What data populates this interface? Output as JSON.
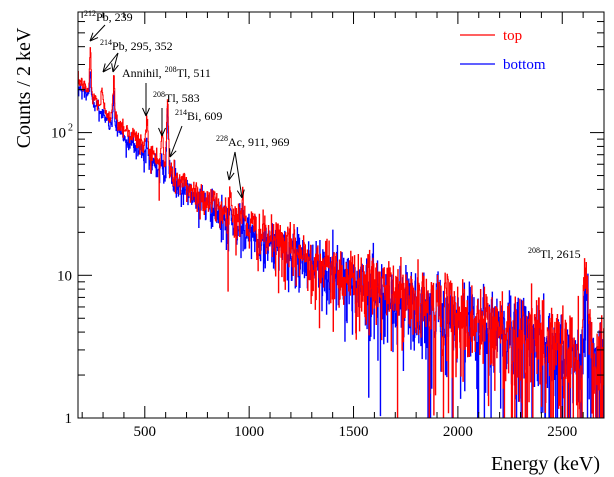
{
  "chart_data": {
    "type": "line",
    "xlabel": "Energy (keV)",
    "ylabel": "Counts / 2 keV",
    "xlim": [
      180,
      2700
    ],
    "ylim": [
      1,
      700
    ],
    "yscale": "log",
    "x_ticks": [
      500,
      1000,
      1500,
      2000,
      2500
    ],
    "x_tick_labels": [
      "500",
      "1000",
      "1500",
      "2000",
      "2500"
    ],
    "y_tick_labels": [
      {
        "value": 1,
        "base": "1",
        "exp": ""
      },
      {
        "value": 10,
        "base": "10",
        "exp": ""
      },
      {
        "value": 100,
        "base": "10",
        "exp": "2"
      }
    ],
    "legend": {
      "placement": "top-right"
    },
    "bin_width": 2,
    "series": [
      {
        "name": "top",
        "color": "#ff0000",
        "continuum": [
          [
            190,
            230
          ],
          [
            250,
            180
          ],
          [
            300,
            150
          ],
          [
            400,
            110
          ],
          [
            500,
            80
          ],
          [
            600,
            56
          ],
          [
            700,
            42
          ],
          [
            800,
            34
          ],
          [
            900,
            27
          ],
          [
            1000,
            22
          ],
          [
            1100,
            18
          ],
          [
            1200,
            15
          ],
          [
            1300,
            13
          ],
          [
            1400,
            11
          ],
          [
            1500,
            9.5
          ],
          [
            1600,
            8.5
          ],
          [
            1700,
            7.5
          ],
          [
            1800,
            6.5
          ],
          [
            1900,
            6
          ],
          [
            2000,
            5.2
          ],
          [
            2100,
            4.6
          ],
          [
            2200,
            4.2
          ],
          [
            2300,
            3.8
          ],
          [
            2400,
            3.4
          ],
          [
            2500,
            3
          ],
          [
            2600,
            2.6
          ],
          [
            2700,
            2.2
          ]
        ],
        "peaks": [
          [
            239,
            380
          ],
          [
            295,
            200
          ],
          [
            352,
            240
          ],
          [
            511,
            130
          ],
          [
            583,
            105
          ],
          [
            609,
            160
          ],
          [
            911,
            38
          ],
          [
            969,
            33
          ],
          [
            2615,
            12
          ]
        ]
      },
      {
        "name": "bottom",
        "color": "#0000ff",
        "continuum": [
          [
            190,
            210
          ],
          [
            250,
            165
          ],
          [
            300,
            135
          ],
          [
            400,
            95
          ],
          [
            500,
            70
          ],
          [
            600,
            50
          ],
          [
            700,
            38
          ],
          [
            800,
            30
          ],
          [
            900,
            24
          ],
          [
            1000,
            20
          ],
          [
            1100,
            16.5
          ],
          [
            1200,
            14
          ],
          [
            1300,
            12
          ],
          [
            1400,
            10
          ],
          [
            1500,
            9
          ],
          [
            1600,
            8
          ],
          [
            1700,
            7
          ],
          [
            1800,
            6.2
          ],
          [
            1900,
            5.6
          ],
          [
            2000,
            5
          ],
          [
            2100,
            4.4
          ],
          [
            2200,
            4
          ],
          [
            2300,
            3.6
          ],
          [
            2400,
            3.2
          ],
          [
            2500,
            2.8
          ],
          [
            2600,
            2.4
          ],
          [
            2700,
            2.1
          ]
        ],
        "peaks": [
          [
            239,
            260
          ],
          [
            295,
            150
          ],
          [
            352,
            195
          ],
          [
            511,
            80
          ],
          [
            583,
            70
          ],
          [
            609,
            145
          ],
          [
            911,
            28
          ],
          [
            969,
            25
          ],
          [
            2615,
            6
          ]
        ]
      }
    ],
    "annotations": [
      {
        "iso_mass": "212",
        "text": "Pb, 239",
        "peaks": [
          239
        ]
      },
      {
        "iso_mass": "214",
        "text": "Pb, 295, 352",
        "peaks": [
          295,
          352
        ]
      },
      {
        "prefix": "Annihil, ",
        "iso_mass": "208",
        "text": "Tl, 511",
        "peaks": [
          511
        ]
      },
      {
        "iso_mass": "208",
        "text": "Tl, 583",
        "peaks": [
          583
        ]
      },
      {
        "iso_mass": "214",
        "text": "Bi, 609",
        "peaks": [
          609
        ]
      },
      {
        "iso_mass": "228",
        "text": "Ac, 911, 969",
        "peaks": [
          911,
          969
        ]
      },
      {
        "iso_mass": "208",
        "text": "Tl, 2615",
        "peaks": [
          2615
        ]
      }
    ]
  }
}
